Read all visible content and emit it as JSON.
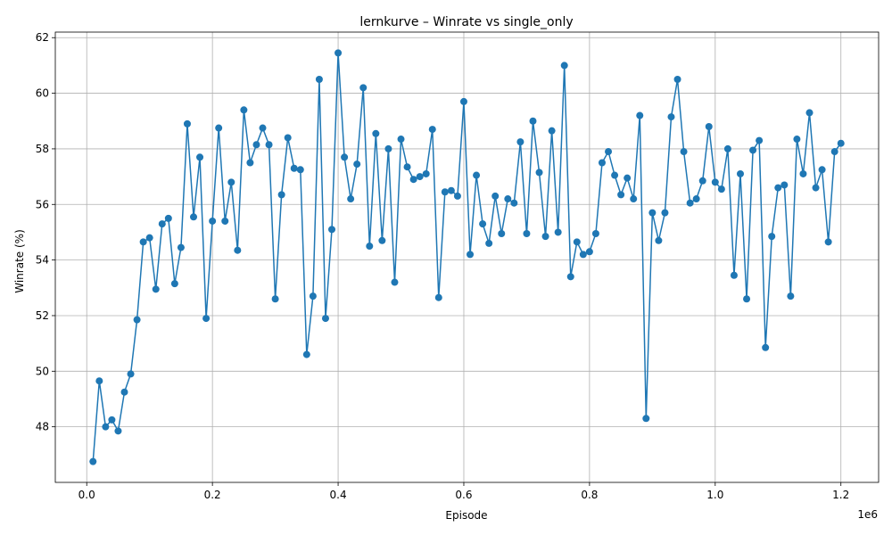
{
  "chart_data": {
    "type": "line",
    "title": "lernkurve – Winrate vs single_only",
    "xlabel": "Episode",
    "ylabel": "Winrate (%)",
    "x_offset_label": "1e6",
    "xlim": [
      -50000,
      1260000
    ],
    "ylim": [
      46.0,
      62.2
    ],
    "x_ticks": [
      0,
      200000,
      400000,
      600000,
      800000,
      1000000,
      1200000
    ],
    "x_tick_labels": [
      "0.0",
      "0.2",
      "0.4",
      "0.6",
      "0.8",
      "1.0",
      "1.2"
    ],
    "y_ticks": [
      48,
      50,
      52,
      54,
      56,
      58,
      60,
      62
    ],
    "y_tick_labels": [
      "48",
      "50",
      "52",
      "54",
      "56",
      "58",
      "60",
      "62"
    ],
    "grid": true,
    "color": "#1f77b4",
    "marker": "circle",
    "x": [
      10000,
      20000,
      30000,
      40000,
      50000,
      60000,
      70000,
      80000,
      90000,
      100000,
      110000,
      120000,
      130000,
      140000,
      150000,
      160000,
      170000,
      180000,
      190000,
      200000,
      210000,
      220000,
      230000,
      240000,
      250000,
      260000,
      270000,
      280000,
      290000,
      300000,
      310000,
      320000,
      330000,
      340000,
      350000,
      360000,
      370000,
      380000,
      390000,
      400000,
      410000,
      420000,
      430000,
      440000,
      450000,
      460000,
      470000,
      480000,
      490000,
      500000,
      510000,
      520000,
      530000,
      540000,
      550000,
      560000,
      570000,
      580000,
      590000,
      600000,
      610000,
      620000,
      630000,
      640000,
      650000,
      660000,
      670000,
      680000,
      690000,
      700000,
      710000,
      720000,
      730000,
      740000,
      750000,
      760000,
      770000,
      780000,
      790000,
      800000,
      810000,
      820000,
      830000,
      840000,
      850000,
      860000,
      870000,
      880000,
      890000,
      900000,
      910000,
      920000,
      930000,
      940000,
      950000,
      960000,
      970000,
      980000,
      990000,
      1000000,
      1010000,
      1020000,
      1030000,
      1040000,
      1050000,
      1060000,
      1070000,
      1080000,
      1090000,
      1100000,
      1110000,
      1120000,
      1130000,
      1140000,
      1150000,
      1160000,
      1170000,
      1180000,
      1190000,
      1200000
    ],
    "y": [
      46.75,
      49.65,
      48.0,
      48.25,
      47.85,
      49.25,
      49.9,
      51.85,
      54.65,
      54.8,
      52.95,
      55.3,
      55.5,
      53.15,
      54.45,
      58.9,
      55.55,
      57.7,
      51.9,
      55.4,
      58.75,
      55.4,
      56.8,
      54.35,
      59.4,
      57.5,
      58.15,
      58.75,
      58.15,
      52.6,
      56.35,
      58.4,
      57.3,
      57.25,
      50.6,
      52.7,
      60.5,
      51.9,
      55.1,
      61.45,
      57.7,
      56.2,
      57.45,
      60.2,
      54.5,
      58.55,
      54.7,
      58.0,
      53.2,
      58.35,
      57.35,
      56.9,
      57.0,
      57.1,
      58.7,
      52.65,
      56.45,
      56.5,
      56.3,
      59.7,
      54.2,
      57.05,
      55.3,
      54.6,
      56.3,
      54.95,
      56.2,
      56.05,
      58.25,
      54.95,
      59.0,
      57.15,
      54.85,
      58.65,
      55.0,
      61.0,
      53.4,
      54.65,
      54.2,
      54.3,
      54.95,
      57.5,
      57.9,
      57.05,
      56.35,
      56.95,
      56.2,
      59.2,
      48.3,
      55.7,
      54.7,
      55.7,
      59.15,
      60.5,
      57.9,
      56.05,
      56.2,
      56.85,
      58.8,
      56.8,
      56.55,
      58.0,
      53.45,
      57.1,
      52.6,
      57.95,
      58.3,
      50.85,
      54.85,
      56.6,
      56.7,
      52.7,
      58.35,
      57.1,
      59.3,
      56.6,
      57.25,
      54.65,
      57.9,
      58.2
    ]
  }
}
